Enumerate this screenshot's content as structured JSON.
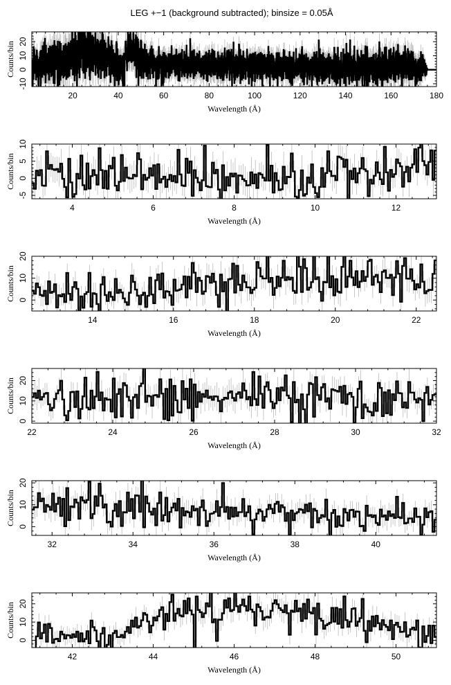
{
  "title": "LEG +−1 (background subtracted); binsize = 0.05Å",
  "chart_data": [
    {
      "type": "line",
      "style": "histogram-step with error bars",
      "title": "LEG +−1 (background subtracted); binsize = 0.05Å",
      "xlabel": "Wavelength (Å)",
      "ylabel": "Counts/bin",
      "xlim": [
        2,
        180
      ],
      "ylim": [
        -12,
        27
      ],
      "xticks": [
        20,
        40,
        60,
        80,
        100,
        120,
        140,
        160,
        180
      ],
      "yticks": [
        -10,
        0,
        10,
        20
      ],
      "grid": false,
      "series": [
        {
          "x": [
            2,
            5,
            10,
            15,
            20,
            25,
            28,
            32,
            36,
            40,
            42,
            43,
            45,
            47,
            50,
            55,
            60,
            70,
            80,
            90,
            100,
            110,
            120,
            130,
            140,
            150,
            160,
            165,
            170,
            175,
            176,
            180
          ],
          "y": [
            2,
            3,
            4,
            6,
            9,
            12,
            13,
            11,
            8,
            5,
            2,
            10,
            15,
            14,
            6,
            5,
            4,
            4,
            3,
            3,
            3,
            2,
            2,
            2,
            2,
            2,
            2,
            3,
            2,
            1,
            0,
            0
          ],
          "spread": [
            6,
            6,
            7,
            7,
            8,
            8,
            8,
            8,
            7,
            6,
            5,
            7,
            7,
            7,
            6,
            5,
            5,
            5,
            5,
            5,
            5,
            5,
            5,
            5,
            6,
            6,
            6,
            6,
            6,
            4,
            0,
            0
          ]
        }
      ]
    },
    {
      "type": "line",
      "style": "histogram-step with error bars",
      "xlabel": "Wavelength (Å)",
      "ylabel": "Counts/bin",
      "xlim": [
        3,
        13
      ],
      "ylim": [
        -6,
        10
      ],
      "xticks": [
        4,
        6,
        8,
        10,
        12
      ],
      "yticks": [
        -5,
        0,
        5,
        10
      ],
      "grid": false,
      "series": [
        {
          "x": [
            3,
            4,
            5,
            6,
            7,
            8,
            9,
            10,
            11,
            12,
            12.7,
            13
          ],
          "y": [
            1,
            0.5,
            1,
            1,
            0.5,
            0,
            0.5,
            1,
            1,
            1,
            3,
            2
          ],
          "spread": [
            3.5,
            3.5,
            3.5,
            3.5,
            3.5,
            3.5,
            3.5,
            3.5,
            3.5,
            3.5,
            4,
            4
          ]
        }
      ]
    },
    {
      "type": "line",
      "style": "histogram-step with error bars",
      "xlabel": "Wavelength (Å)",
      "ylabel": "Counts/bin",
      "xlim": [
        12.5,
        22.5
      ],
      "ylim": [
        -5,
        20
      ],
      "xticks": [
        14,
        16,
        18,
        20,
        22
      ],
      "yticks": [
        0,
        10,
        20
      ],
      "grid": false,
      "series": [
        {
          "x": [
            12.5,
            13.5,
            14,
            15,
            16,
            16.5,
            17,
            18,
            18.5,
            19,
            20,
            21,
            22,
            22.5
          ],
          "y": [
            4,
            4,
            2,
            4,
            5,
            9,
            7,
            9,
            12,
            10,
            10,
            10,
            10,
            9
          ],
          "spread": [
            4,
            4,
            4,
            4.5,
            4.5,
            5,
            5,
            5,
            5.5,
            5,
            5,
            5,
            5,
            5
          ]
        }
      ]
    },
    {
      "type": "line",
      "style": "histogram-step with error bars",
      "xlabel": "Wavelength (Å)",
      "ylabel": "Counts/bin",
      "xlim": [
        22,
        32
      ],
      "ylim": [
        -1,
        26
      ],
      "xticks": [
        22,
        24,
        26,
        28,
        30,
        32
      ],
      "yticks": [
        0,
        10,
        20
      ],
      "grid": false,
      "series": [
        {
          "x": [
            22,
            23,
            24,
            25,
            26,
            27,
            28,
            29,
            30,
            31,
            32
          ],
          "y": [
            10,
            11,
            12,
            11,
            11,
            13,
            13,
            12,
            10,
            10,
            12
          ],
          "spread": [
            5,
            5,
            5.5,
            5.5,
            5.5,
            5.5,
            5.5,
            5.5,
            5,
            5,
            5
          ]
        }
      ]
    },
    {
      "type": "line",
      "style": "histogram-step with error bars",
      "xlabel": "Wavelength (Å)",
      "ylabel": "Counts/bin",
      "xlim": [
        31.5,
        41.5
      ],
      "ylim": [
        -4,
        21
      ],
      "xticks": [
        32,
        34,
        36,
        38,
        40
      ],
      "yticks": [
        0,
        10,
        20
      ],
      "grid": false,
      "series": [
        {
          "x": [
            31.5,
            32,
            33,
            34,
            35,
            36,
            37,
            38,
            39,
            40,
            41.5
          ],
          "y": [
            8,
            10,
            10,
            9,
            9,
            8,
            7,
            6,
            5,
            4,
            3
          ],
          "spread": [
            4.5,
            4.5,
            4.5,
            4.5,
            4.5,
            4.5,
            4,
            4,
            4,
            4,
            4
          ]
        }
      ]
    },
    {
      "type": "line",
      "style": "histogram-step with error bars",
      "xlabel": "Wavelength (Å)",
      "ylabel": "Counts/bin",
      "xlim": [
        41,
        51
      ],
      "ylim": [
        -4,
        26
      ],
      "xticks": [
        42,
        44,
        46,
        48,
        50
      ],
      "yticks": [
        0,
        10,
        20
      ],
      "grid": false,
      "series": [
        {
          "x": [
            41,
            42,
            42.8,
            43.2,
            44,
            44.4,
            45,
            46,
            47,
            48,
            49,
            50,
            51
          ],
          "y": [
            2,
            3,
            2,
            5,
            13,
            16,
            15,
            15,
            15,
            14,
            11,
            8,
            4
          ],
          "spread": [
            4,
            4,
            4,
            4.5,
            5,
            5.5,
            5.5,
            5.5,
            5.5,
            5.5,
            5,
            5,
            4
          ]
        }
      ]
    }
  ]
}
